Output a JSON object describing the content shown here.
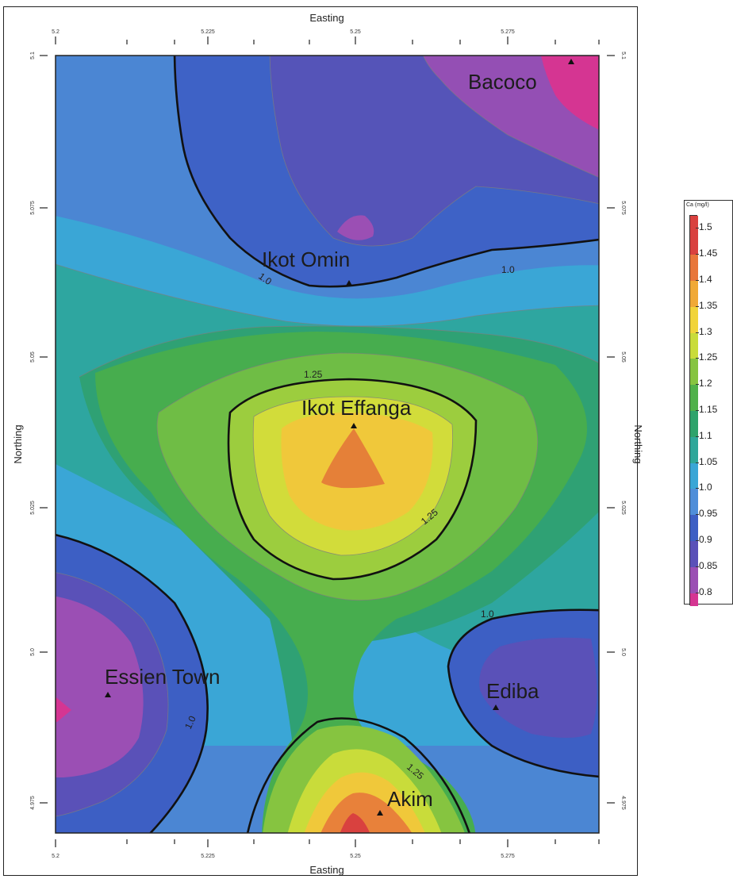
{
  "map": {
    "x_axis_title": "Easting",
    "y_axis_title": "Northing",
    "x_ticks": [
      "5.2",
      "5.225",
      "5.25",
      "5.275"
    ],
    "y_ticks": [
      "5.1",
      "5.075",
      "5.05",
      "5.025",
      "5.0",
      "4.975"
    ],
    "sites": [
      {
        "name": "Bacoco"
      },
      {
        "name": "Ikot Omin"
      },
      {
        "name": "Ikot Effanga"
      },
      {
        "name": "Essien Town"
      },
      {
        "name": "Ediba"
      },
      {
        "name": "Akim"
      }
    ],
    "contour_labels": [
      "1.0",
      "1.0",
      "1.25",
      "1.25",
      "1.0",
      "1.0",
      "1.25"
    ]
  },
  "legend": {
    "title": "Ca (mg/l)",
    "levels": [
      "1.5",
      "1.45",
      "1.4",
      "1.35",
      "1.3",
      "1.25",
      "1.2",
      "1.15",
      "1.1",
      "1.05",
      "1.0",
      "0.95",
      "0.9",
      "0.85",
      "0.8"
    ],
    "colors": [
      "#d9413f",
      "#e8763a",
      "#f0a936",
      "#f1d43a",
      "#c9dc3a",
      "#86c440",
      "#4fb14a",
      "#2ea36b",
      "#2fa79a",
      "#3aa6d6",
      "#4f8ed9",
      "#3d5fc4",
      "#5a51b8",
      "#9b4fb4",
      "#d53592"
    ]
  }
}
